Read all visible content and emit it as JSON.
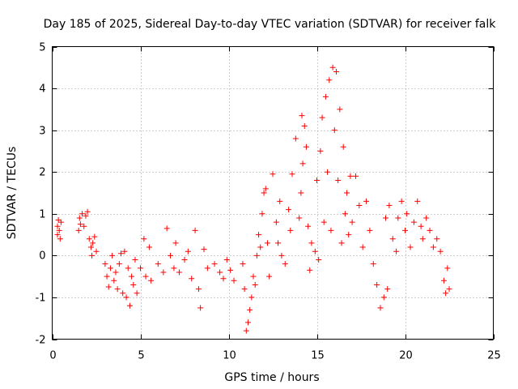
{
  "chart_data": {
    "type": "scatter",
    "title": "Day 185 of 2025, Sidereal Day-to-day VTEC variation (SDTVAR) for receiver falk",
    "xlabel": "GPS time / hours",
    "ylabel": "SDTVAR / TECUs",
    "xlim": [
      0,
      25
    ],
    "ylim": [
      -2,
      5
    ],
    "xticks": [
      0,
      5,
      10,
      15,
      20,
      25
    ],
    "yticks": [
      -2,
      -1,
      0,
      1,
      2,
      3,
      4,
      5
    ],
    "grid": true,
    "marker": "plus",
    "color": "#ff0000",
    "series": [
      {
        "name": "SDTVAR",
        "values": [
          [
            0.3,
            0.5
          ],
          [
            0.3,
            0.7
          ],
          [
            0.35,
            0.85
          ],
          [
            0.4,
            0.6
          ],
          [
            0.45,
            0.4
          ],
          [
            0.5,
            0.8
          ],
          [
            1.5,
            0.6
          ],
          [
            1.55,
            0.9
          ],
          [
            1.6,
            0.75
          ],
          [
            1.7,
            1.0
          ],
          [
            1.8,
            0.7
          ],
          [
            1.9,
            0.95
          ],
          [
            2.0,
            1.05
          ],
          [
            2.1,
            0.4
          ],
          [
            2.2,
            0.2
          ],
          [
            2.25,
            0.0
          ],
          [
            2.3,
            0.3
          ],
          [
            2.4,
            0.45
          ],
          [
            2.5,
            0.1
          ],
          [
            3.0,
            -0.2
          ],
          [
            3.1,
            -0.5
          ],
          [
            3.2,
            -0.75
          ],
          [
            3.3,
            -0.3
          ],
          [
            3.4,
            0.0
          ],
          [
            3.5,
            -0.6
          ],
          [
            3.6,
            -0.4
          ],
          [
            3.7,
            -0.8
          ],
          [
            3.8,
            -0.2
          ],
          [
            3.9,
            0.05
          ],
          [
            4.0,
            -0.9
          ],
          [
            4.1,
            0.1
          ],
          [
            4.2,
            -1.0
          ],
          [
            4.3,
            -0.3
          ],
          [
            4.4,
            -1.2
          ],
          [
            4.5,
            -0.5
          ],
          [
            4.6,
            -0.7
          ],
          [
            4.7,
            -0.1
          ],
          [
            4.8,
            -0.9
          ],
          [
            5.0,
            -0.3
          ],
          [
            5.2,
            0.4
          ],
          [
            5.3,
            -0.5
          ],
          [
            5.5,
            0.2
          ],
          [
            5.6,
            -0.6
          ],
          [
            6.0,
            -0.2
          ],
          [
            6.3,
            -0.4
          ],
          [
            6.5,
            0.65
          ],
          [
            6.7,
            0.0
          ],
          [
            6.9,
            -0.3
          ],
          [
            7.0,
            0.3
          ],
          [
            7.2,
            -0.4
          ],
          [
            7.5,
            -0.1
          ],
          [
            7.7,
            0.1
          ],
          [
            7.9,
            -0.55
          ],
          [
            8.1,
            0.6
          ],
          [
            8.3,
            -0.8
          ],
          [
            8.4,
            -1.25
          ],
          [
            8.6,
            0.15
          ],
          [
            8.8,
            -0.3
          ],
          [
            9.2,
            -0.2
          ],
          [
            9.5,
            -0.4
          ],
          [
            9.7,
            -0.55
          ],
          [
            9.9,
            -0.1
          ],
          [
            10.1,
            -0.35
          ],
          [
            10.3,
            -0.6
          ],
          [
            10.8,
            -0.2
          ],
          [
            10.9,
            -0.8
          ],
          [
            11.0,
            -1.8
          ],
          [
            11.1,
            -1.6
          ],
          [
            11.2,
            -1.3
          ],
          [
            11.3,
            -1.0
          ],
          [
            11.4,
            -0.5
          ],
          [
            11.5,
            -0.7
          ],
          [
            11.6,
            0.0
          ],
          [
            11.7,
            0.5
          ],
          [
            11.8,
            0.2
          ],
          [
            11.9,
            1.0
          ],
          [
            12.0,
            1.5
          ],
          [
            12.1,
            1.6
          ],
          [
            12.2,
            0.3
          ],
          [
            12.3,
            -0.5
          ],
          [
            12.5,
            1.95
          ],
          [
            12.7,
            0.8
          ],
          [
            12.8,
            0.3
          ],
          [
            12.9,
            1.3
          ],
          [
            13.0,
            0.0
          ],
          [
            13.2,
            -0.2
          ],
          [
            13.4,
            1.1
          ],
          [
            13.5,
            0.6
          ],
          [
            13.6,
            1.95
          ],
          [
            13.8,
            2.8
          ],
          [
            14.0,
            0.9
          ],
          [
            14.1,
            1.5
          ],
          [
            14.15,
            3.35
          ],
          [
            14.2,
            2.2
          ],
          [
            14.3,
            3.1
          ],
          [
            14.4,
            2.6
          ],
          [
            14.5,
            0.7
          ],
          [
            14.6,
            -0.35
          ],
          [
            14.7,
            0.3
          ],
          [
            14.9,
            0.1
          ],
          [
            15.0,
            1.8
          ],
          [
            15.1,
            -0.1
          ],
          [
            15.2,
            2.5
          ],
          [
            15.3,
            3.3
          ],
          [
            15.4,
            0.8
          ],
          [
            15.5,
            3.8
          ],
          [
            15.6,
            2.0
          ],
          [
            15.7,
            4.2
          ],
          [
            15.8,
            0.6
          ],
          [
            15.9,
            4.5
          ],
          [
            16.0,
            3.0
          ],
          [
            16.1,
            4.4
          ],
          [
            16.2,
            1.8
          ],
          [
            16.3,
            3.5
          ],
          [
            16.4,
            0.3
          ],
          [
            16.5,
            2.6
          ],
          [
            16.6,
            1.0
          ],
          [
            16.7,
            1.5
          ],
          [
            16.8,
            0.5
          ],
          [
            16.9,
            1.9
          ],
          [
            17.0,
            0.8
          ],
          [
            17.2,
            1.9
          ],
          [
            17.4,
            1.2
          ],
          [
            17.6,
            0.2
          ],
          [
            17.8,
            1.3
          ],
          [
            18.0,
            0.6
          ],
          [
            18.2,
            -0.2
          ],
          [
            18.4,
            -0.7
          ],
          [
            18.6,
            -1.25
          ],
          [
            18.8,
            -1.0
          ],
          [
            18.9,
            0.9
          ],
          [
            19.0,
            -0.8
          ],
          [
            19.1,
            1.2
          ],
          [
            19.3,
            0.4
          ],
          [
            19.5,
            0.1
          ],
          [
            19.6,
            0.9
          ],
          [
            19.8,
            1.3
          ],
          [
            20.0,
            0.6
          ],
          [
            20.1,
            1.0
          ],
          [
            20.3,
            0.2
          ],
          [
            20.5,
            0.8
          ],
          [
            20.7,
            1.3
          ],
          [
            20.9,
            0.7
          ],
          [
            21.0,
            0.4
          ],
          [
            21.2,
            0.9
          ],
          [
            21.4,
            0.6
          ],
          [
            21.6,
            0.2
          ],
          [
            21.8,
            0.4
          ],
          [
            22.0,
            0.1
          ],
          [
            22.2,
            -0.6
          ],
          [
            22.3,
            -0.9
          ],
          [
            22.4,
            -0.3
          ],
          [
            22.5,
            -0.8
          ]
        ]
      }
    ]
  }
}
